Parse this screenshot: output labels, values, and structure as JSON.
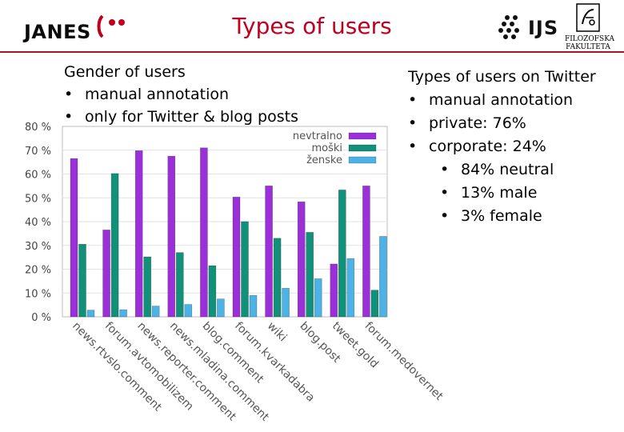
{
  "header": {
    "title": "Types of users",
    "janes_logo_text": "JANES",
    "ijs_logo_text": "IJS",
    "ff_logo_lines": [
      "FILOZOFSKA",
      "FAKULTETA"
    ]
  },
  "left": {
    "heading": "Gender of users",
    "bullets": [
      "manual annotation",
      "only for Twitter & blog posts"
    ]
  },
  "right": {
    "heading": "Types of users on Twitter",
    "bullets": [
      "manual annotation",
      "private: 76%",
      "corporate: 24%"
    ],
    "sub_bullets": [
      "84% neutral",
      "13% male",
      "3% female"
    ]
  },
  "bullet_char": "•",
  "colors": {
    "title": "#c0001f",
    "rule": "#a3152f",
    "nevtralno": "#9b30d9",
    "moski": "#11907a",
    "zenske": "#4db3e6"
  },
  "chart_data": {
    "type": "bar",
    "title": "",
    "xlabel": "",
    "ylabel": "",
    "ylim": [
      0,
      80
    ],
    "yticks": [
      "0 %",
      "10 %",
      "20 %",
      "30 %",
      "40 %",
      "50 %",
      "60 %",
      "70 %",
      "80 %"
    ],
    "ytick_values": [
      0,
      10,
      20,
      30,
      40,
      50,
      60,
      70,
      80
    ],
    "grid": true,
    "legend_position": "top-right",
    "categories": [
      "news.rtvslo.comment",
      "forum.avtomobilizem",
      "news.reporter.comment",
      "news.mladina.comment",
      "blog.comment",
      "forum.kvarkadabra",
      "wiki",
      "blog.post",
      "tweet.gold",
      "forum.medovernet"
    ],
    "series": [
      {
        "name": "nevtralno",
        "values": [
          66.5,
          36.5,
          69.8,
          67.5,
          71.0,
          50.3,
          55.0,
          48.3,
          22.2,
          55.0
        ]
      },
      {
        "name": "moški",
        "values": [
          30.5,
          60.2,
          25.2,
          27.0,
          21.5,
          40.0,
          33.0,
          35.5,
          53.3,
          11.2
        ]
      },
      {
        "name": "ženske",
        "values": [
          2.8,
          3.0,
          4.5,
          5.2,
          7.5,
          9.0,
          12.0,
          16.0,
          24.5,
          33.8
        ]
      }
    ]
  }
}
